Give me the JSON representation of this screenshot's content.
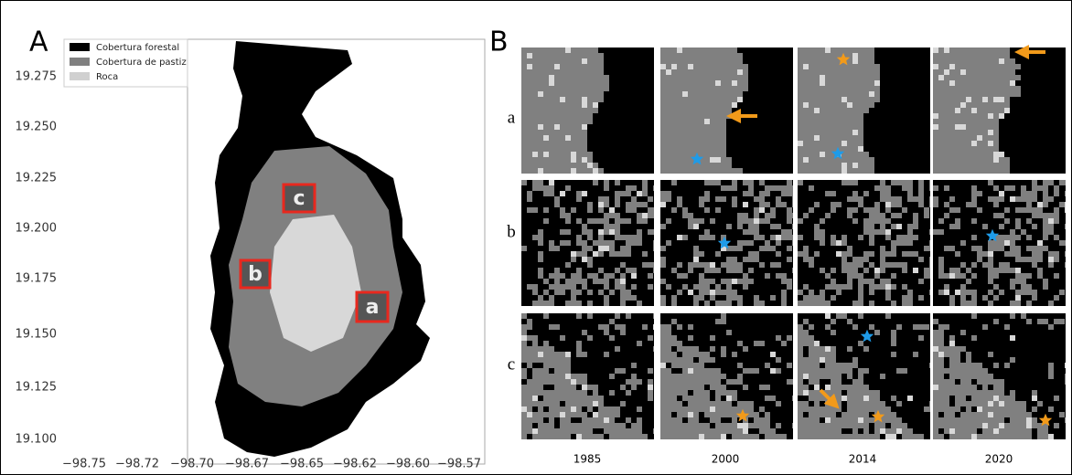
{
  "panel_a": {
    "label": "A",
    "legend": [
      "Cobertura forestal",
      "Cobertura de pastiz",
      "Roca"
    ],
    "y_ticks": [
      "19.275",
      "19.250",
      "19.225",
      "19.200",
      "19.175",
      "19.150",
      "19.125",
      "19.100"
    ],
    "x_ticks": [
      "−98.75",
      "−98.72",
      "−98.70",
      "−98.67",
      "−98.65",
      "−98.62",
      "−98.60",
      "−98.57"
    ],
    "box_labels": [
      "a",
      "b",
      "c"
    ]
  },
  "panel_b": {
    "label": "B",
    "rows": [
      "a",
      "b",
      "c"
    ],
    "columns": [
      "1985",
      "2000",
      "2014",
      "2020"
    ]
  }
}
